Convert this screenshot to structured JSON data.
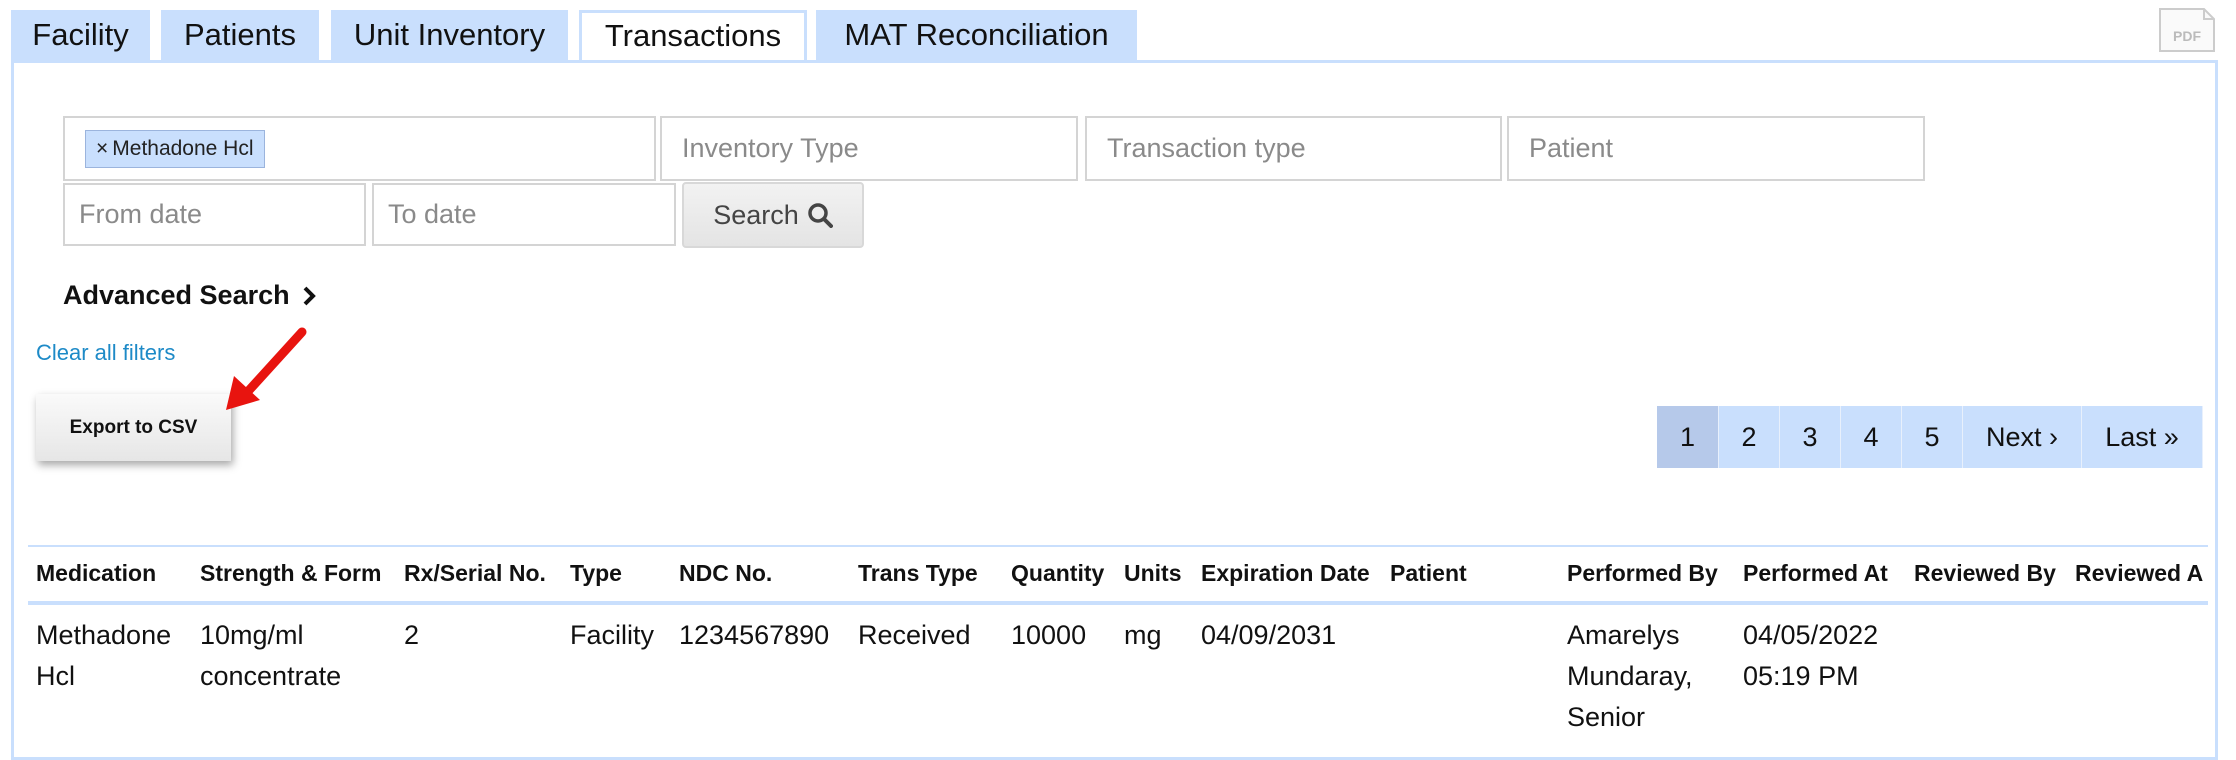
{
  "tabs": [
    {
      "label": "Facility",
      "active": false
    },
    {
      "label": "Patients",
      "active": false
    },
    {
      "label": "Unit Inventory",
      "active": false
    },
    {
      "label": "Transactions",
      "active": true
    },
    {
      "label": "MAT Reconciliation",
      "active": false
    }
  ],
  "pdf_icon": {
    "label": "PDF",
    "icon": "pdf-file-icon"
  },
  "filters": {
    "medication_chip": "Methadone Hcl",
    "chip_remove": "×",
    "inventory_type_placeholder": "Inventory Type",
    "transaction_type_placeholder": "Transaction type",
    "patient_placeholder": "Patient",
    "from_date_placeholder": "From date",
    "to_date_placeholder": "To date",
    "search_label": "Search",
    "advanced_search": "Advanced Search",
    "clear_all": "Clear all filters"
  },
  "export_label": "Export to CSV",
  "pagination": {
    "pages": [
      "1",
      "2",
      "3",
      "4",
      "5"
    ],
    "current": "1",
    "next": "Next ›",
    "last": "Last »"
  },
  "table": {
    "headers": [
      "Medication",
      "Strength & Form",
      "Rx/Serial No.",
      "Type",
      "NDC No.",
      "Trans Type",
      "Quantity",
      "Units",
      "Expiration Date",
      "Patient",
      "Performed By",
      "Performed At",
      "Reviewed By",
      "Reviewed A"
    ],
    "rows": [
      [
        "Methadone Hcl",
        "10mg/ml concentrate",
        "2",
        "Facility",
        "1234567890",
        "Received",
        "10000",
        "mg",
        "04/09/2031",
        "",
        "Amarelys Mundaray, Senior",
        "04/05/2022 05:19 PM",
        "",
        ""
      ]
    ]
  },
  "colors": {
    "tab_bg": "#c9dffd",
    "link": "#1d8ac7",
    "annotation_arrow": "#e8140f"
  }
}
